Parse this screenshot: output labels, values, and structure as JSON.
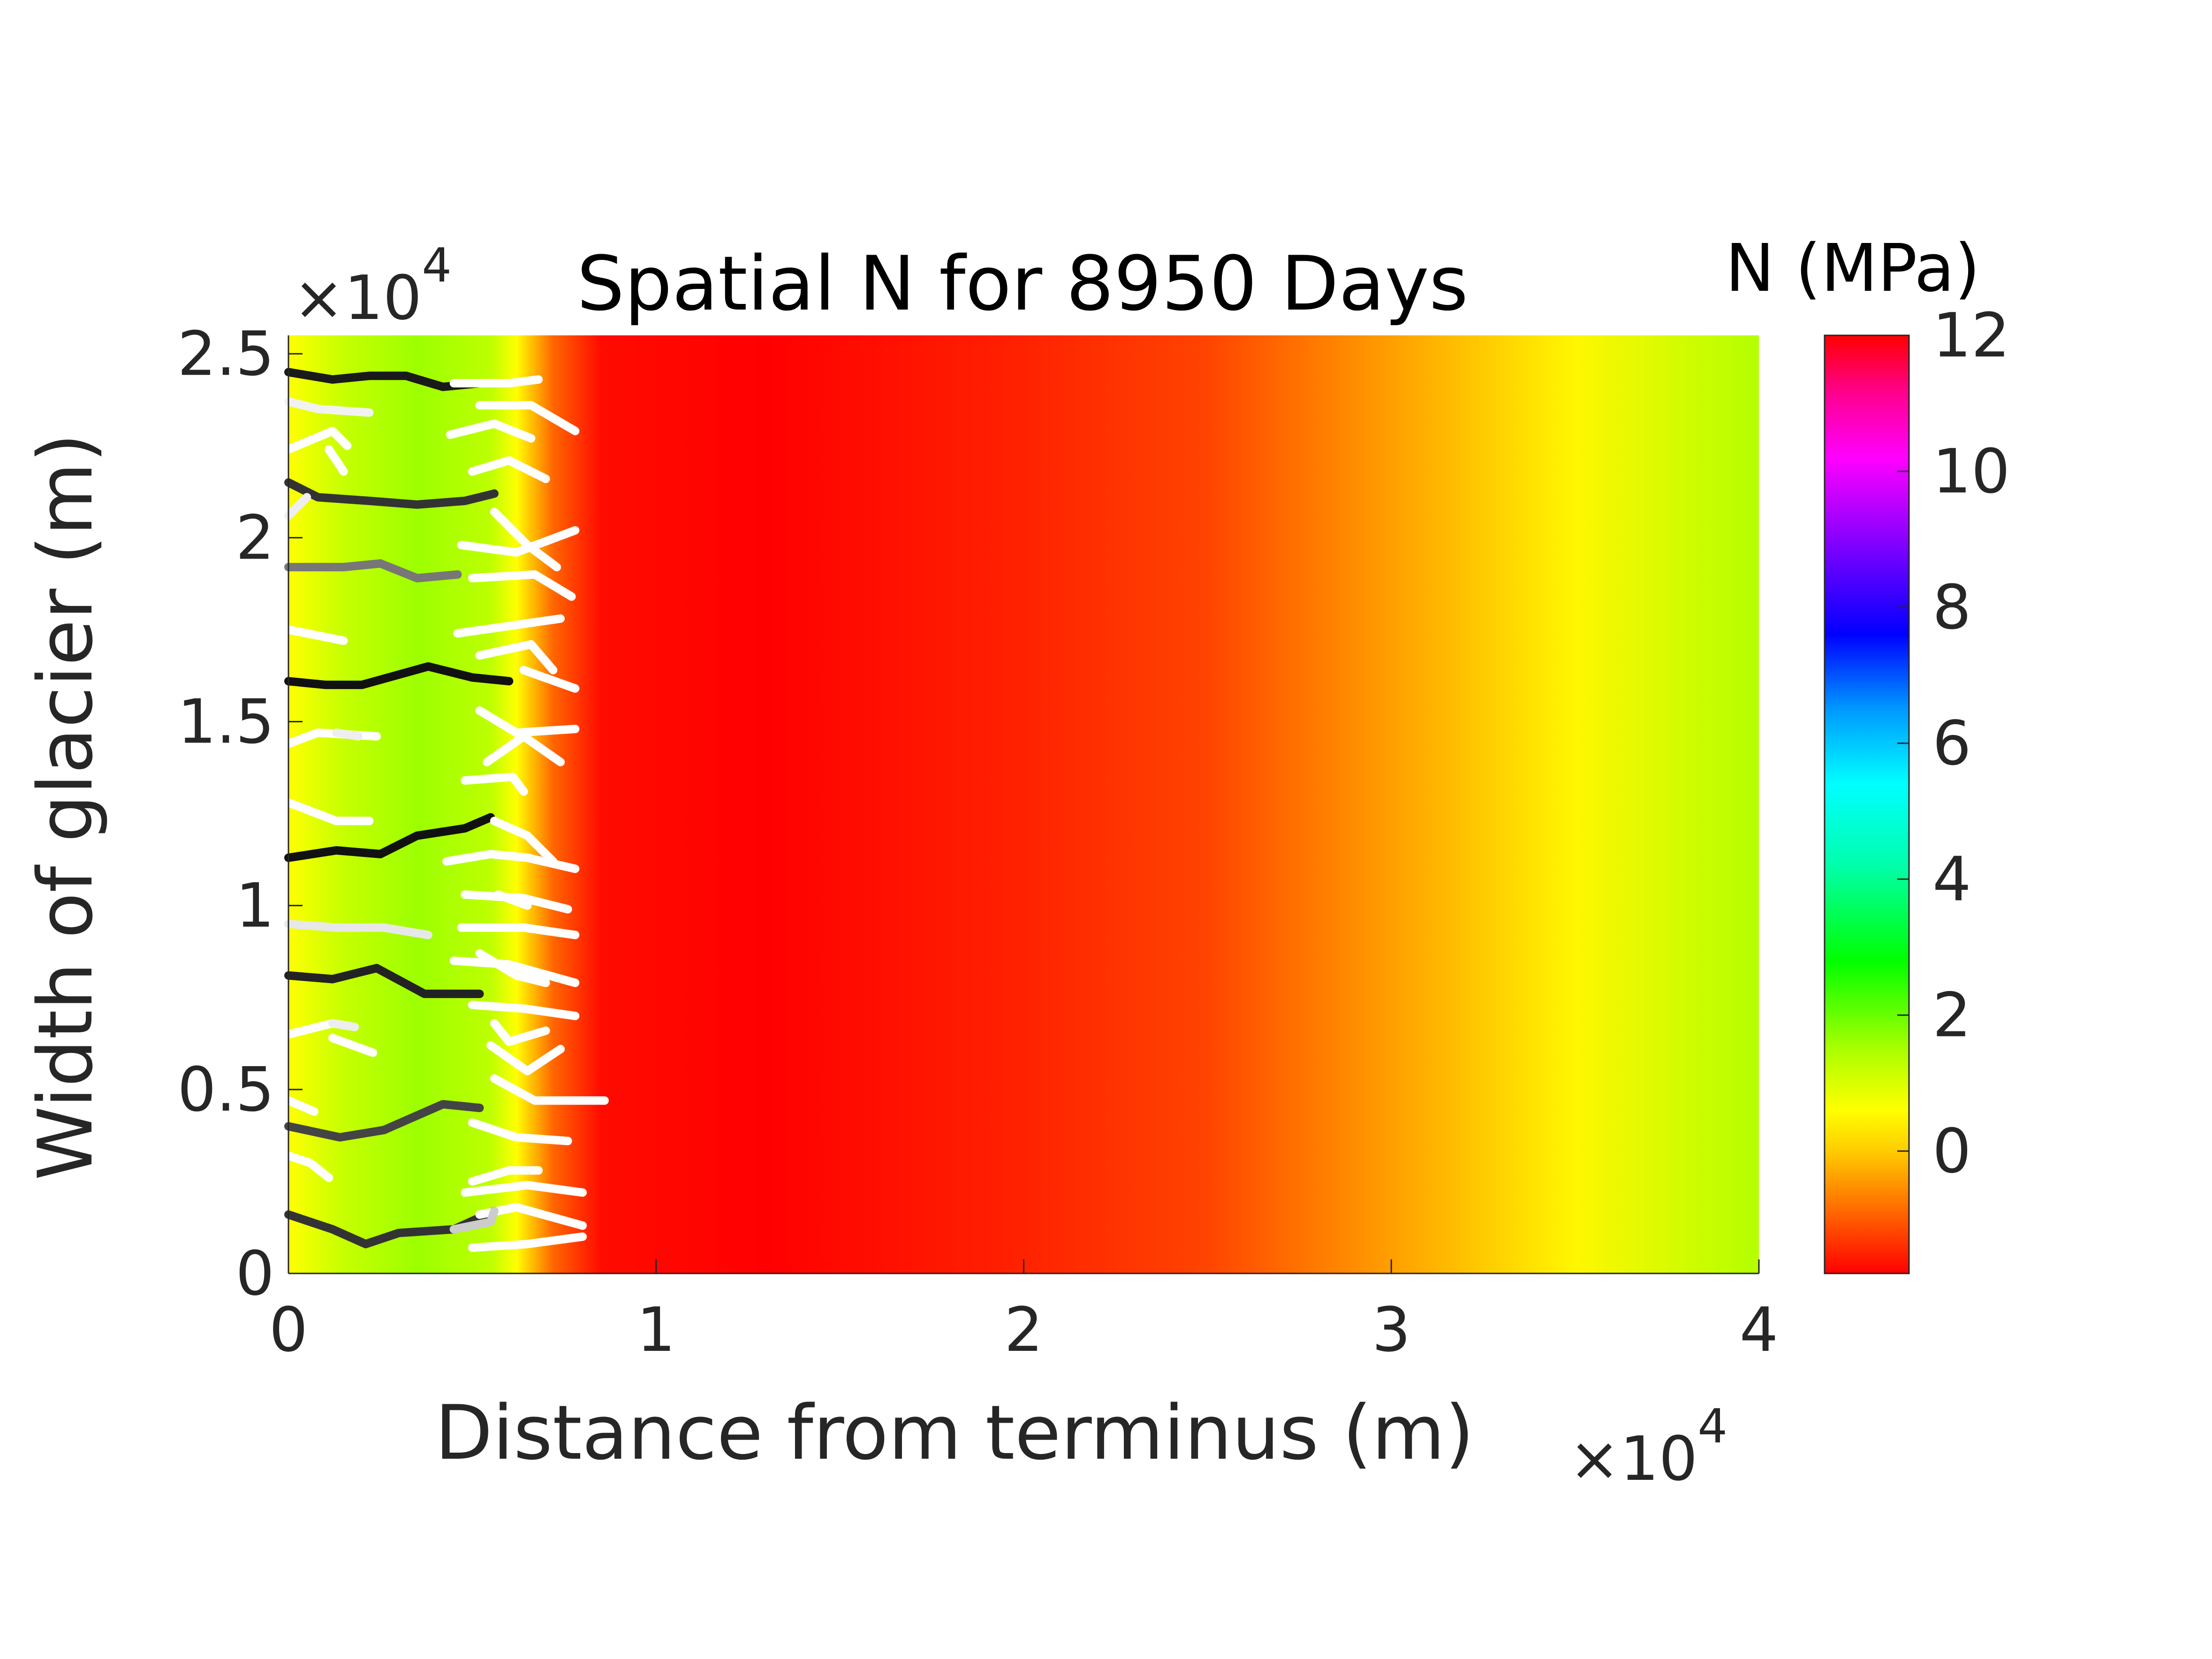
{
  "chart_data": {
    "type": "heatmap",
    "title": "Spatial N for 8950 Days",
    "xlabel": "Distance from terminus (m)",
    "ylabel": "Width of glacier (m)",
    "x_exponent_label": "×10",
    "x_exponent_power": "4",
    "y_exponent_label": "×10",
    "y_exponent_power": "4",
    "xlim": [
      0,
      40000
    ],
    "ylim": [
      0,
      25500
    ],
    "x_ticks": [
      0,
      10000,
      20000,
      30000,
      40000
    ],
    "x_tick_labels": [
      "0",
      "1",
      "2",
      "3",
      "4"
    ],
    "y_ticks": [
      0,
      5000,
      10000,
      15000,
      20000,
      25000
    ],
    "y_tick_labels": [
      "0",
      "0.5",
      "1",
      "1.5",
      "2",
      "2.5"
    ],
    "colorbar": {
      "title": "N (MPa)",
      "range": [
        -1.8,
        12
      ],
      "ticks": [
        0,
        2,
        4,
        6,
        8,
        10,
        12
      ],
      "tick_labels": [
        "0",
        "2",
        "4",
        "6",
        "8",
        "10",
        "12"
      ],
      "colormap": [
        {
          "value": -1.8,
          "color": "#ff0000"
        },
        {
          "value": -0.9,
          "color": "#ff6600"
        },
        {
          "value": 0.0,
          "color": "#ffcc00"
        },
        {
          "value": 0.6,
          "color": "#ffff00"
        },
        {
          "value": 1.5,
          "color": "#aaff00"
        },
        {
          "value": 2.8,
          "color": "#00ff00"
        },
        {
          "value": 4.2,
          "color": "#00ffaa"
        },
        {
          "value": 5.4,
          "color": "#00ffff"
        },
        {
          "value": 6.5,
          "color": "#0099ff"
        },
        {
          "value": 7.6,
          "color": "#0000ff"
        },
        {
          "value": 9.0,
          "color": "#8800ff"
        },
        {
          "value": 10.2,
          "color": "#ff00ff"
        },
        {
          "value": 11.2,
          "color": "#ff0088"
        },
        {
          "value": 12.0,
          "color": "#ff0000"
        }
      ]
    },
    "field_profile_along_x": [
      {
        "x": 0,
        "N": 0.6
      },
      {
        "x": 1500,
        "N": 1.2
      },
      {
        "x": 3500,
        "N": 1.6
      },
      {
        "x": 5500,
        "N": 1.3
      },
      {
        "x": 6200,
        "N": 0.6
      },
      {
        "x": 7200,
        "N": -0.9
      },
      {
        "x": 8500,
        "N": -1.7
      },
      {
        "x": 13000,
        "N": -1.8
      },
      {
        "x": 20000,
        "N": -1.5
      },
      {
        "x": 25000,
        "N": -1.2
      },
      {
        "x": 30000,
        "N": -0.4
      },
      {
        "x": 35000,
        "N": 0.5
      },
      {
        "x": 40000,
        "N": 1.4
      }
    ],
    "channels_major": [
      {
        "shade": "#1a1a1a",
        "points": [
          [
            0,
            24500
          ],
          [
            1200,
            24300
          ],
          [
            2200,
            24400
          ],
          [
            3200,
            24400
          ],
          [
            4200,
            24100
          ],
          [
            5200,
            24200
          ]
        ]
      },
      {
        "shade": "#333333",
        "points": [
          [
            0,
            21500
          ],
          [
            800,
            21100
          ],
          [
            2200,
            21000
          ],
          [
            3500,
            20900
          ],
          [
            4800,
            21000
          ],
          [
            5600,
            21200
          ]
        ]
      },
      {
        "shade": "#777777",
        "points": [
          [
            0,
            19200
          ],
          [
            1500,
            19200
          ],
          [
            2500,
            19300
          ],
          [
            3500,
            18900
          ],
          [
            4600,
            19000
          ]
        ]
      },
      {
        "shade": "#111111",
        "points": [
          [
            0,
            16100
          ],
          [
            1000,
            16000
          ],
          [
            2000,
            16000
          ],
          [
            3800,
            16500
          ],
          [
            5000,
            16200
          ],
          [
            6000,
            16100
          ]
        ]
      },
      {
        "shade": "#111111",
        "points": [
          [
            0,
            11300
          ],
          [
            1300,
            11500
          ],
          [
            2500,
            11400
          ],
          [
            3500,
            11900
          ],
          [
            4800,
            12100
          ],
          [
            5500,
            12400
          ]
        ]
      },
      {
        "shade": "#222222",
        "points": [
          [
            0,
            8100
          ],
          [
            1200,
            8000
          ],
          [
            2400,
            8300
          ],
          [
            3700,
            7600
          ],
          [
            5200,
            7600
          ]
        ]
      },
      {
        "shade": "#444444",
        "points": [
          [
            0,
            4000
          ],
          [
            1400,
            3700
          ],
          [
            2600,
            3900
          ],
          [
            4200,
            4600
          ],
          [
            5200,
            4500
          ]
        ]
      },
      {
        "shade": "#333333",
        "points": [
          [
            0,
            1600
          ],
          [
            1200,
            1200
          ],
          [
            2100,
            800
          ],
          [
            3000,
            1100
          ],
          [
            4500,
            1200
          ],
          [
            5600,
            1700
          ]
        ]
      }
    ],
    "channels_minor": [
      {
        "shade": "#ffffff",
        "points": [
          [
            4500,
            24200
          ],
          [
            6000,
            24200
          ],
          [
            6800,
            24300
          ]
        ]
      },
      {
        "shade": "#f2f2f2",
        "points": [
          [
            0,
            23700
          ],
          [
            800,
            23500
          ],
          [
            2200,
            23400
          ]
        ]
      },
      {
        "shade": "#ffffff",
        "points": [
          [
            5200,
            23600
          ],
          [
            6600,
            23600
          ],
          [
            7800,
            22900
          ]
        ]
      },
      {
        "shade": "#ffffff",
        "points": [
          [
            0,
            22400
          ],
          [
            1200,
            22900
          ],
          [
            1600,
            22500
          ]
        ]
      },
      {
        "shade": "#ffffff",
        "points": [
          [
            4400,
            22800
          ],
          [
            5600,
            23100
          ],
          [
            6600,
            22700
          ]
        ]
      },
      {
        "shade": "#ffffff",
        "points": [
          [
            1100,
            22400
          ],
          [
            1500,
            21800
          ]
        ]
      },
      {
        "shade": "#ffffff",
        "points": [
          [
            5000,
            21800
          ],
          [
            6000,
            22100
          ],
          [
            7000,
            21600
          ]
        ]
      },
      {
        "shade": "#eeeeee",
        "points": [
          [
            0,
            20600
          ],
          [
            500,
            21100
          ]
        ]
      },
      {
        "shade": "#ffffff",
        "points": [
          [
            4700,
            19800
          ],
          [
            6200,
            19600
          ],
          [
            7800,
            20200
          ]
        ]
      },
      {
        "shade": "#ffffff",
        "points": [
          [
            5600,
            20700
          ],
          [
            6500,
            19800
          ],
          [
            7300,
            19200
          ]
        ]
      },
      {
        "shade": "#ffffff",
        "points": [
          [
            5000,
            18900
          ],
          [
            6700,
            19000
          ],
          [
            7700,
            18400
          ]
        ]
      },
      {
        "shade": "#ffffff",
        "points": [
          [
            0,
            17500
          ],
          [
            1500,
            17200
          ]
        ]
      },
      {
        "shade": "#ffffff",
        "points": [
          [
            4600,
            17400
          ],
          [
            6000,
            17600
          ],
          [
            7400,
            17800
          ]
        ]
      },
      {
        "shade": "#ffffff",
        "points": [
          [
            5200,
            16800
          ],
          [
            6600,
            17100
          ],
          [
            7200,
            16400
          ]
        ]
      },
      {
        "shade": "#ffffff",
        "points": [
          [
            6400,
            16400
          ],
          [
            7800,
            15900
          ]
        ]
      },
      {
        "shade": "#ffffff",
        "points": [
          [
            0,
            14400
          ],
          [
            800,
            14700
          ],
          [
            2400,
            14600
          ]
        ]
      },
      {
        "shade": "#eeeeee",
        "points": [
          [
            1300,
            14700
          ],
          [
            1900,
            14600
          ]
        ]
      },
      {
        "shade": "#ffffff",
        "points": [
          [
            5200,
            15300
          ],
          [
            6200,
            14700
          ],
          [
            7800,
            14800
          ]
        ]
      },
      {
        "shade": "#ffffff",
        "points": [
          [
            5400,
            13900
          ],
          [
            6400,
            14600
          ],
          [
            7400,
            13900
          ]
        ]
      },
      {
        "shade": "#ffffff",
        "points": [
          [
            4800,
            13400
          ],
          [
            6100,
            13500
          ],
          [
            6400,
            13100
          ]
        ]
      },
      {
        "shade": "#ffffff",
        "points": [
          [
            0,
            12800
          ],
          [
            1300,
            12300
          ],
          [
            2200,
            12300
          ]
        ]
      },
      {
        "shade": "#ffffff",
        "points": [
          [
            4300,
            11200
          ],
          [
            5500,
            11400
          ],
          [
            6500,
            11300
          ],
          [
            7800,
            11000
          ]
        ]
      },
      {
        "shade": "#ffffff",
        "points": [
          [
            5600,
            12300
          ],
          [
            6500,
            11900
          ],
          [
            7200,
            11200
          ]
        ]
      },
      {
        "shade": "#ffffff",
        "points": [
          [
            4800,
            10300
          ],
          [
            6400,
            10200
          ],
          [
            7600,
            9900
          ]
        ]
      },
      {
        "shade": "#ffffff",
        "points": [
          [
            5700,
            10300
          ],
          [
            6500,
            10000
          ]
        ]
      },
      {
        "shade": "#e8e8e8",
        "points": [
          [
            0,
            9500
          ],
          [
            1300,
            9400
          ],
          [
            2600,
            9400
          ],
          [
            3800,
            9200
          ]
        ]
      },
      {
        "shade": "#ffffff",
        "points": [
          [
            4700,
            9400
          ],
          [
            6400,
            9400
          ],
          [
            7800,
            9200
          ]
        ]
      },
      {
        "shade": "#ffffff",
        "points": [
          [
            4500,
            8500
          ],
          [
            6000,
            8400
          ],
          [
            7800,
            7900
          ]
        ]
      },
      {
        "shade": "#ffffff",
        "points": [
          [
            5200,
            8700
          ],
          [
            6200,
            8100
          ],
          [
            7000,
            7900
          ]
        ]
      },
      {
        "shade": "#ffffff",
        "points": [
          [
            5000,
            7300
          ],
          [
            6400,
            7200
          ],
          [
            7800,
            7000
          ]
        ]
      },
      {
        "shade": "#ffffff",
        "points": [
          [
            0,
            6500
          ],
          [
            1200,
            6800
          ],
          [
            1800,
            6700
          ]
        ]
      },
      {
        "shade": "#eeeeee",
        "points": [
          [
            1200,
            6800
          ],
          [
            1800,
            6700
          ]
        ]
      },
      {
        "shade": "#ffffff",
        "points": [
          [
            1200,
            6400
          ],
          [
            2300,
            6000
          ]
        ]
      },
      {
        "shade": "#ffffff",
        "points": [
          [
            5600,
            6800
          ],
          [
            6000,
            6300
          ],
          [
            7000,
            6600
          ]
        ]
      },
      {
        "shade": "#ffffff",
        "points": [
          [
            5500,
            6200
          ],
          [
            6500,
            5500
          ],
          [
            7400,
            6100
          ]
        ]
      },
      {
        "shade": "#ffffff",
        "points": [
          [
            5600,
            5300
          ],
          [
            6700,
            4700
          ],
          [
            8600,
            4700
          ]
        ]
      },
      {
        "shade": "#ffffff",
        "points": [
          [
            0,
            4700
          ],
          [
            700,
            4400
          ]
        ]
      },
      {
        "shade": "#ffffff",
        "points": [
          [
            5000,
            4100
          ],
          [
            6200,
            3700
          ],
          [
            7600,
            3600
          ]
        ]
      },
      {
        "shade": "#ffffff",
        "points": [
          [
            0,
            3200
          ],
          [
            600,
            3000
          ],
          [
            1100,
            2600
          ]
        ]
      },
      {
        "shade": "#ffffff",
        "points": [
          [
            5000,
            2500
          ],
          [
            6000,
            2800
          ],
          [
            6800,
            2800
          ]
        ]
      },
      {
        "shade": "#ffffff",
        "points": [
          [
            4800,
            2200
          ],
          [
            6500,
            2400
          ],
          [
            8000,
            2200
          ]
        ]
      },
      {
        "shade": "#ffffff",
        "points": [
          [
            5200,
            1600
          ],
          [
            6200,
            1800
          ],
          [
            8000,
            1300
          ]
        ]
      },
      {
        "shade": "#ffffff",
        "points": [
          [
            5000,
            700
          ],
          [
            6500,
            800
          ],
          [
            8000,
            1000
          ]
        ]
      },
      {
        "shade": "#cccccc",
        "points": [
          [
            4500,
            1200
          ],
          [
            5500,
            1400
          ],
          [
            5600,
            1700
          ]
        ]
      }
    ]
  }
}
